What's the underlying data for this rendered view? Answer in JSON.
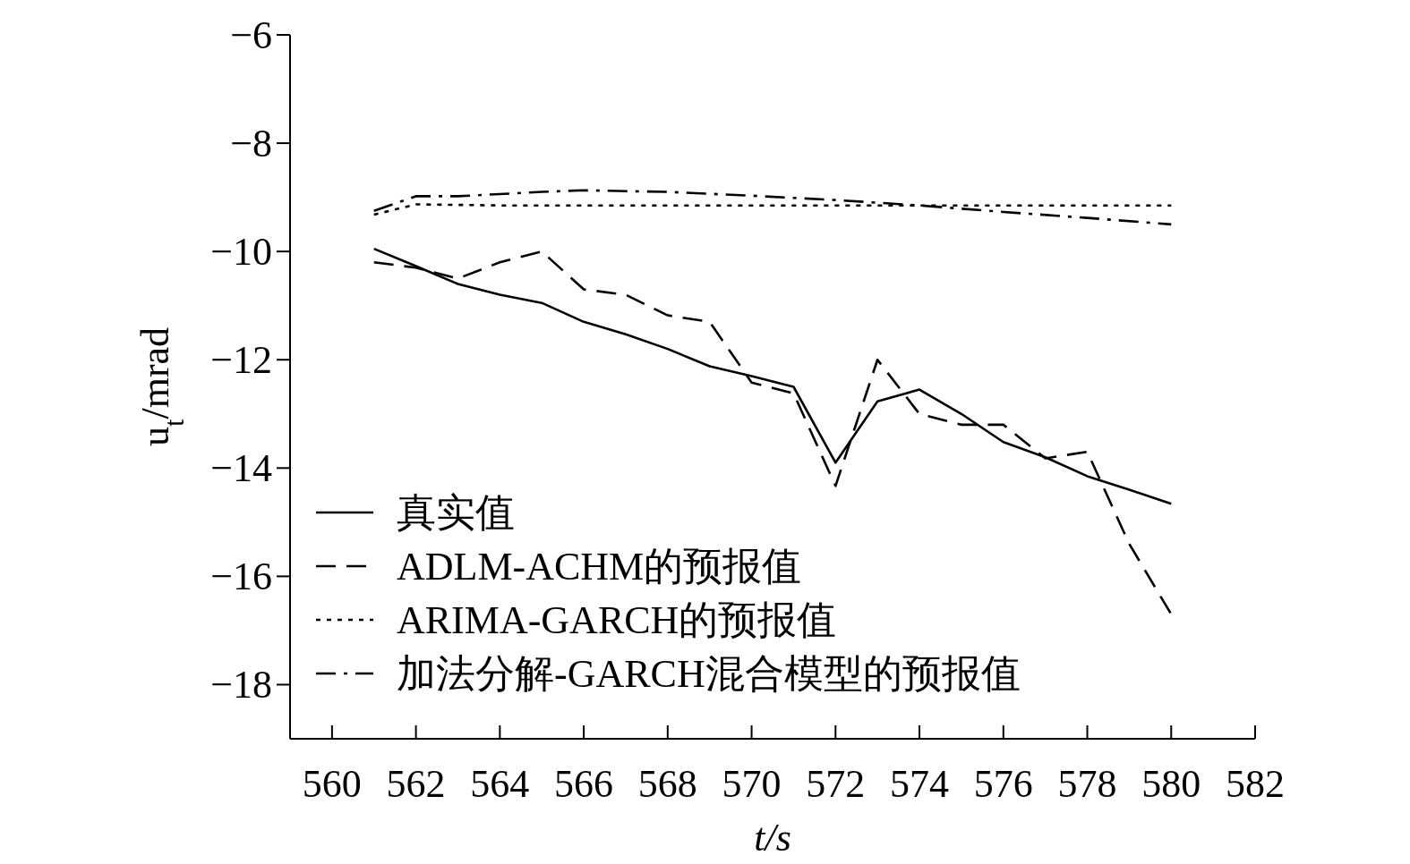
{
  "chart_data": {
    "type": "line",
    "xlabel": "t/s",
    "ylabel": "u$_{t}$/mrad",
    "xlim": [
      559,
      582
    ],
    "ylim": [
      -19,
      -6
    ],
    "xticks": [
      560,
      562,
      564,
      566,
      568,
      570,
      572,
      574,
      576,
      578,
      580,
      582
    ],
    "yticks": [
      -18,
      -16,
      -14,
      -12,
      -10,
      -8,
      -6
    ],
    "grid": false,
    "legend": "bottom left",
    "marker": "none",
    "series": [
      {
        "name": "真实值",
        "color": "#000000",
        "line_style": "solid",
        "x": [
          561,
          562,
          563,
          564,
          565,
          566,
          567,
          568,
          569,
          570,
          571,
          572,
          573,
          574,
          575,
          576,
          577,
          578,
          579,
          580
        ],
        "values": [
          -9.95,
          -10.27,
          -10.6,
          -10.8,
          -10.95,
          -11.3,
          -11.53,
          -11.8,
          -12.12,
          -12.3,
          -12.5,
          -13.9,
          -12.77,
          -12.55,
          -13.0,
          -13.52,
          -13.8,
          -14.15,
          -14.4,
          -14.66
        ]
      },
      {
        "name": "ADLM-ACHM的预报值",
        "color": "#000000",
        "line_style": "dashed",
        "x": [
          561,
          562,
          563,
          564,
          565,
          566,
          567,
          568,
          569,
          570,
          571,
          572,
          573,
          574,
          575,
          576,
          577,
          578,
          579,
          580
        ],
        "values": [
          -10.2,
          -10.3,
          -10.5,
          -10.2,
          -10.0,
          -10.7,
          -10.8,
          -11.18,
          -11.3,
          -12.42,
          -12.62,
          -14.33,
          -12.0,
          -13.0,
          -13.2,
          -13.2,
          -13.82,
          -13.7,
          -15.4,
          -16.7
        ]
      },
      {
        "name": "ARIMA-GARCH的预报值",
        "color": "#000000",
        "line_style": "dotted",
        "x": [
          561,
          562,
          564,
          566,
          568,
          570,
          572,
          574,
          576,
          578,
          580
        ],
        "values": [
          -9.32,
          -9.13,
          -9.15,
          -9.15,
          -9.15,
          -9.15,
          -9.15,
          -9.15,
          -9.15,
          -9.15,
          -9.15
        ]
      },
      {
        "name": "加法分解-GARCH混合模型的预报值",
        "color": "#000000",
        "line_style": "dashdot",
        "x": [
          561,
          562,
          563,
          565,
          566,
          568,
          570,
          572,
          574,
          576,
          578,
          580
        ],
        "values": [
          -9.25,
          -8.98,
          -8.98,
          -8.9,
          -8.87,
          -8.9,
          -8.97,
          -9.05,
          -9.15,
          -9.27,
          -9.38,
          -9.5
        ]
      }
    ]
  }
}
